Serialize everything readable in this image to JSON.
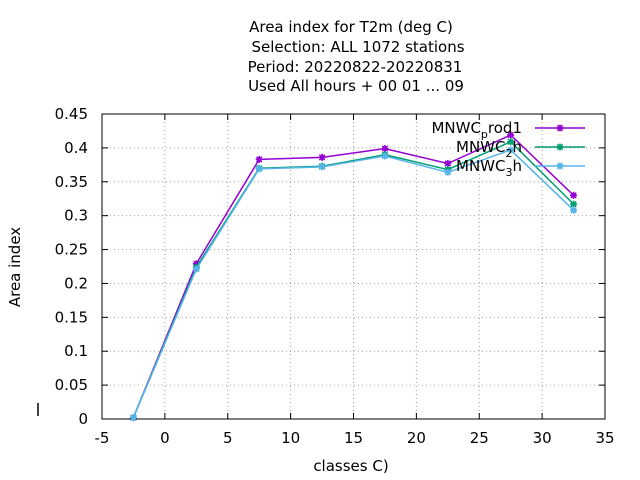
{
  "chart_data": {
    "type": "line",
    "title_lines": [
      "Area index  for T2m (deg C)",
      "Selection: ALL   1072 stations",
      "Period: 20220822-20220831",
      "Used  All hours + 00 01 ... 09"
    ],
    "xlabel": "classes C)",
    "ylabel": "Area index",
    "xlim": [
      -5,
      35
    ],
    "ylim": [
      0,
      0.45
    ],
    "xticks": [
      -5,
      0,
      5,
      10,
      15,
      20,
      25,
      30,
      35
    ],
    "yticks": [
      0,
      0.05,
      0.1,
      0.15,
      0.2,
      0.25,
      0.3,
      0.35,
      0.4,
      0.45
    ],
    "xtick_labels": [
      "-5",
      "0",
      "5",
      "10",
      "15",
      "20",
      "25",
      "30",
      "35"
    ],
    "ytick_labels": [
      "0",
      "0.05",
      "0.1",
      "0.15",
      "0.2",
      "0.25",
      "0.3",
      "0.35",
      "0.4",
      "0.45"
    ],
    "grid": true,
    "legend_position": "top-right",
    "x": [
      -2.5,
      2.5,
      7.5,
      12.5,
      17.5,
      22.5,
      27.5,
      32.5
    ],
    "series": [
      {
        "name": "MNWC_prod1",
        "label_main": "MNWC",
        "label_sub": "p",
        "label_rest": "rod1",
        "color": "#9400d3",
        "values": [
          0.002,
          0.229,
          0.383,
          0.386,
          0.399,
          0.377,
          0.419,
          0.33
        ]
      },
      {
        "name": "MNWC_2h",
        "label_main": "MNWC",
        "label_sub": "2",
        "label_rest": "h",
        "color": "#009e73",
        "values": [
          0.002,
          0.224,
          0.37,
          0.373,
          0.39,
          0.368,
          0.409,
          0.317
        ]
      },
      {
        "name": "MNWC_3h",
        "label_main": "MNWC",
        "label_sub": "3",
        "label_rest": "h",
        "color": "#56b4e9",
        "values": [
          0.002,
          0.221,
          0.369,
          0.372,
          0.388,
          0.364,
          0.397,
          0.308
        ]
      }
    ]
  }
}
